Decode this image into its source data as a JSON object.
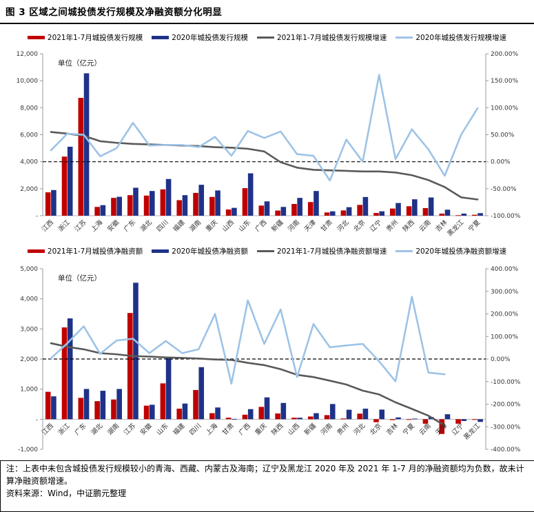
{
  "figure_title": "图 3 区域之间城投债发行规模及净融资额分化明显",
  "chart_data": [
    {
      "type": "bar",
      "unit_label": "单位（亿元）",
      "categories": [
        "江西",
        "浙江",
        "江苏",
        "上海",
        "安徽",
        "广东",
        "湖北",
        "四川",
        "福建",
        "湖南",
        "重庆",
        "山西",
        "山东",
        "广西",
        "新疆",
        "河南",
        "天津",
        "甘肃",
        "河北",
        "北京",
        "辽宁",
        "贵州",
        "陕西",
        "云南",
        "吉林",
        "黑龙江",
        "宁夏"
      ],
      "series": [
        {
          "name": "2021年1-7月城投债发行规模",
          "kind": "bar",
          "axis": "left",
          "color": "#C00000",
          "values": [
            1730,
            4380,
            8730,
            650,
            1320,
            1520,
            1490,
            1950,
            1150,
            1690,
            1390,
            460,
            2040,
            750,
            380,
            870,
            1010,
            240,
            390,
            800,
            200,
            530,
            700,
            565,
            155,
            35,
            70
          ]
        },
        {
          "name": "2020年城投债发行规模",
          "kind": "bar",
          "axis": "left",
          "color": "#1F3288",
          "values": [
            1900,
            5110,
            10550,
            780,
            1400,
            2070,
            1830,
            2720,
            1520,
            2290,
            1870,
            580,
            3140,
            1060,
            650,
            1320,
            1830,
            325,
            630,
            1385,
            325,
            940,
            1215,
            1350,
            445,
            155,
            190
          ]
        },
        {
          "name": "2021年1-7月城投债发行规模增速",
          "kind": "line",
          "axis": "right",
          "color": "#595959",
          "values": [
            55,
            52,
            48,
            38,
            35,
            33,
            32,
            31,
            30,
            29,
            27,
            26,
            24,
            19,
            -1,
            -11,
            -15,
            -16,
            -17,
            -18,
            -18,
            -20,
            -25,
            -34,
            -47,
            -66,
            -70
          ]
        },
        {
          "name": "2020年城投债发行规模增速",
          "kind": "line",
          "axis": "right",
          "color": "#9DC3E6",
          "values": [
            21,
            52,
            50,
            10,
            25,
            72,
            30,
            31,
            31,
            27,
            46,
            11,
            57,
            44,
            56,
            14,
            11,
            -35,
            41,
            0,
            161,
            5,
            60,
            23,
            -26,
            50,
            99
          ]
        }
      ],
      "left_axis": {
        "min": 0,
        "max": 12000,
        "ticks": [
          "12,000",
          "10,000",
          "8,000",
          "6,000",
          "4,000",
          "2,000",
          "-"
        ]
      },
      "right_axis": {
        "min": -100,
        "max": 200,
        "ticks": [
          "200.00%",
          "150.00%",
          "100.00%",
          "50.00%",
          "0.00%",
          "-50.00%",
          "-100.00%"
        ]
      },
      "zero_reference_line_right_pct": 0,
      "legend_position": "top",
      "grid": false
    },
    {
      "type": "bar",
      "unit_label": "单位（亿元）",
      "categories": [
        "江西",
        "浙江",
        "广东",
        "湖北",
        "湖南",
        "江苏",
        "安徽",
        "山东",
        "福建",
        "四川",
        "上海",
        "甘肃",
        "广西",
        "重庆",
        "陕西",
        "山西",
        "新疆",
        "河南",
        "贵州",
        "河北",
        "北京",
        "吉林",
        "宁夏",
        "云南",
        "天津",
        "辽宁",
        "黑龙江"
      ],
      "series": [
        {
          "name": "2021年1-7月城投债净融资额",
          "kind": "bar",
          "axis": "left",
          "color": "#C00000",
          "values": [
            910,
            3050,
            710,
            600,
            655,
            3530,
            450,
            1190,
            350,
            970,
            200,
            50,
            150,
            410,
            190,
            50,
            90,
            135,
            25,
            185,
            -100,
            -30,
            -15,
            -150,
            -490,
            -150,
            -20
          ]
        },
        {
          "name": "2020年城投债净融资额",
          "kind": "bar",
          "axis": "left",
          "color": "#1F3288",
          "values": [
            760,
            3350,
            1005,
            945,
            1005,
            4535,
            480,
            2030,
            520,
            1730,
            390,
            10,
            335,
            725,
            540,
            50,
            200,
            505,
            315,
            350,
            320,
            60,
            20,
            75,
            165,
            -60,
            -90
          ]
        },
        {
          "name": "2021年1-7月城投债净融资额增速",
          "kind": "line",
          "axis": "right",
          "color": "#595959",
          "values": [
            70,
            54,
            43,
            26,
            21,
            13,
            11,
            7,
            5,
            2,
            -2,
            -4,
            -17,
            -27,
            -45,
            -70,
            -80,
            -96,
            -113,
            -140,
            -157,
            -192,
            -221,
            -251,
            -294,
            null,
            null
          ]
        },
        {
          "name": "2020年城投债净融资额增速",
          "kind": "line",
          "axis": "right",
          "color": "#9DC3E6",
          "values": [
            3,
            70,
            145,
            23,
            82,
            90,
            26,
            80,
            26,
            43,
            200,
            -109,
            260,
            67,
            220,
            -80,
            155,
            52,
            60,
            67,
            -10,
            -99,
            276,
            -60,
            -68,
            null,
            null
          ]
        }
      ],
      "left_axis": {
        "min": -1000,
        "max": 5000,
        "ticks": [
          "5,000",
          "4,000",
          "3,000",
          "2,000",
          "1,000",
          "-",
          "-1,000"
        ]
      },
      "right_axis": {
        "min": -400,
        "max": 400,
        "ticks": [
          "400.00%",
          "300.00%",
          "200.00%",
          "100.00%",
          "0.00%",
          "-100.00%",
          "-200.00%",
          "-300.00%",
          "-400.00%"
        ]
      },
      "zero_reference_line_right_pct": 0,
      "legend_position": "top",
      "grid": false
    }
  ],
  "footer": {
    "note": "注：上表中未包含城投债发行规模较小的青海、西藏、内蒙古及海南；辽宁及黑龙江 2020 年及 2021 年 1-7 月的净融资额均为负数，故未计算净融资额增速。",
    "source": "资料来源：Wind，中证鹏元整理"
  },
  "colors": {
    "bar_2021": "#C00000",
    "bar_2020": "#1F3288",
    "line_2021_growth": "#595959",
    "line_2020_growth": "#9DC3E6",
    "axis": "#999999",
    "zero_dash": "#000000"
  }
}
